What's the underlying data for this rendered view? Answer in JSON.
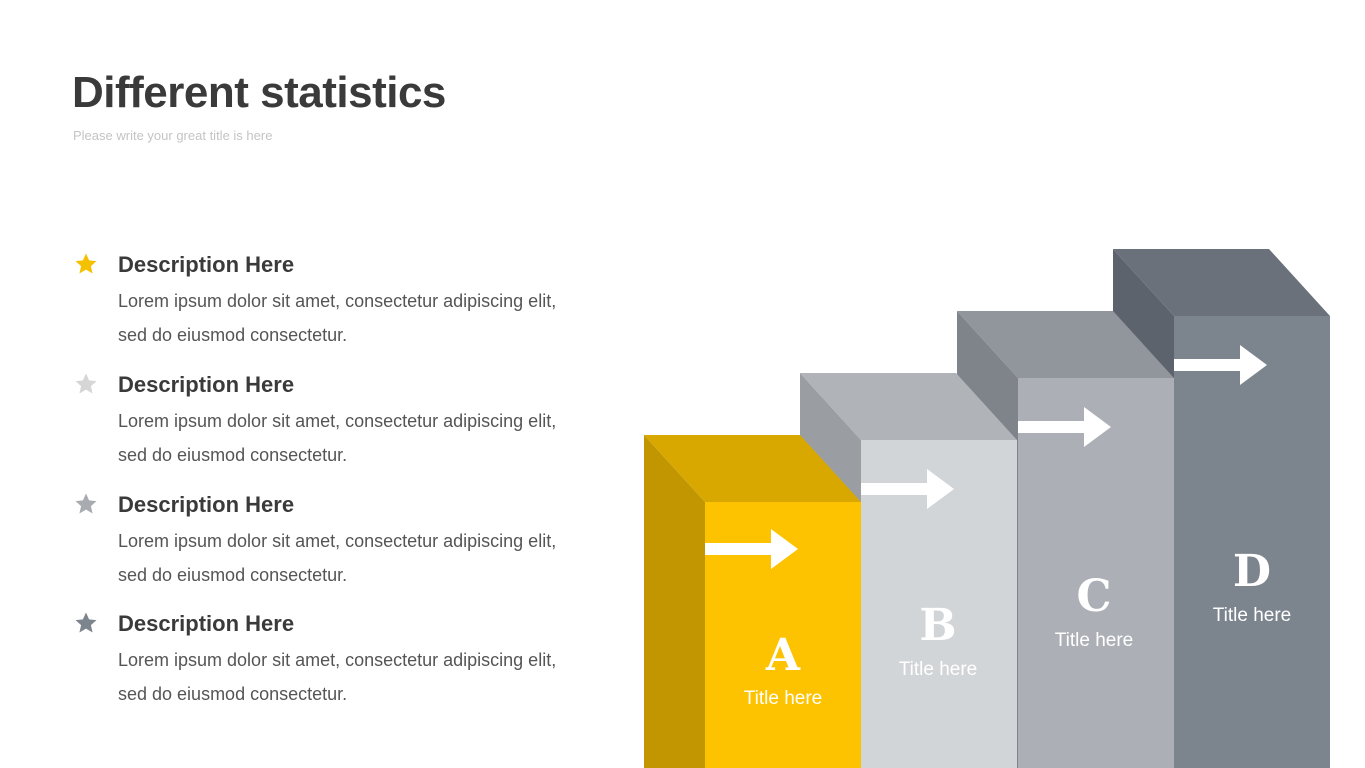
{
  "header": {
    "title": "Different statistics",
    "subtitle": "Please write your great title is here"
  },
  "items": [
    {
      "icon": "star-icon",
      "color": "#F5C000",
      "title": "Description Here",
      "text": "Lorem ipsum dolor sit amet, consectetur adipiscing elit, sed do eiusmod consectetur."
    },
    {
      "icon": "star-icon",
      "color": "#D6D6D6",
      "title": "Description Here",
      "text": "Lorem ipsum dolor sit amet, consectetur adipiscing elit, sed do eiusmod consectetur."
    },
    {
      "icon": "star-icon",
      "color": "#A8ABB0",
      "title": "Description Here",
      "text": "Lorem ipsum dolor sit amet, consectetur adipiscing elit, sed do eiusmod consectetur."
    },
    {
      "icon": "star-icon",
      "color": "#7C848E",
      "title": "Description Here",
      "text": "Lorem ipsum dolor sit amet, consectetur adipiscing elit, sed do eiusmod consectetur."
    }
  ],
  "steps": [
    {
      "letter": "A",
      "caption": "Title here",
      "front": "#FDC300",
      "top": "#D9A800",
      "side": "#C19600"
    },
    {
      "letter": "B",
      "caption": "Title here",
      "front": "#D2D5D8",
      "top": "#B0B3B7",
      "side": "#9A9EA3"
    },
    {
      "letter": "C",
      "caption": "Title here",
      "front": "#ACAFB5",
      "top": "#91959C",
      "side": "#7F838A"
    },
    {
      "letter": "D",
      "caption": "Title here",
      "front": "#7C848E",
      "top": "#6A717A",
      "side": "#5C636C"
    }
  ]
}
